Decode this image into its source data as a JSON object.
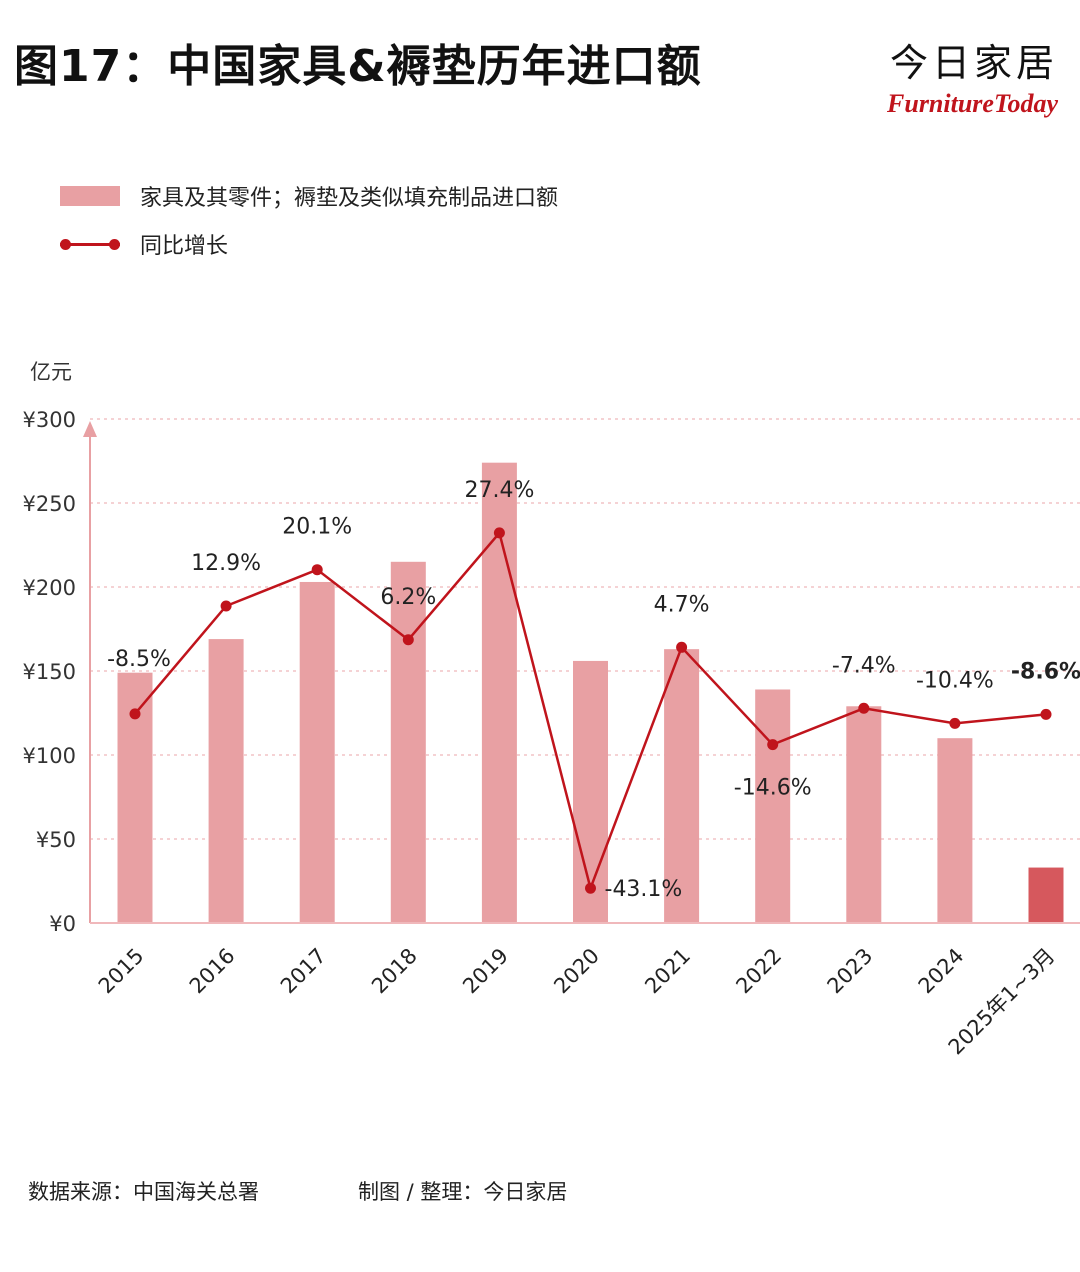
{
  "title": "图17：中国家具&褥垫历年进口额",
  "brand": {
    "cn": "今日家居",
    "en": "FurnitureToday"
  },
  "legend": {
    "bar_label": "家具及其零件；褥垫及类似填充制品进口额",
    "line_label": "同比增长"
  },
  "unit": "亿元",
  "footer": {
    "source": "数据来源：中国海关总署",
    "credit": "制图 / 整理：今日家居"
  },
  "colors": {
    "bar": "#e8a0a3",
    "bar_highlight": "#d6585d",
    "line": "#c0141c",
    "grid": "#f2c4c6",
    "axis": "#e8a0a3"
  },
  "chart_data": {
    "type": "bar",
    "categories": [
      "2015",
      "2016",
      "2017",
      "2018",
      "2019",
      "2020",
      "2021",
      "2022",
      "2023",
      "2024",
      "2025年1~3月"
    ],
    "series": [
      {
        "name": "家具及其零件；褥垫及类似填充制品进口额",
        "type": "bar",
        "values": [
          149,
          169,
          203,
          215,
          274,
          156,
          163,
          139,
          129,
          110,
          33
        ]
      },
      {
        "name": "同比增长",
        "type": "line",
        "values": [
          -8.5,
          12.9,
          20.1,
          6.2,
          27.4,
          -43.1,
          4.7,
          -14.6,
          -7.4,
          -10.4,
          -8.6
        ],
        "labels": [
          "-8.5%",
          "12.9%",
          "20.1%",
          "6.2%",
          "27.4%",
          "-43.1%",
          "4.7%",
          "-14.6%",
          "-7.4%",
          "-10.4%",
          "-8.6%"
        ]
      }
    ],
    "y_ticks": [
      "¥300",
      "¥250",
      "¥200",
      "¥150",
      "¥100",
      "¥50",
      "¥0"
    ],
    "ylim": [
      0,
      300
    ],
    "y2lim": [
      -50,
      50
    ],
    "grid": true,
    "legend_position": "top-left"
  }
}
